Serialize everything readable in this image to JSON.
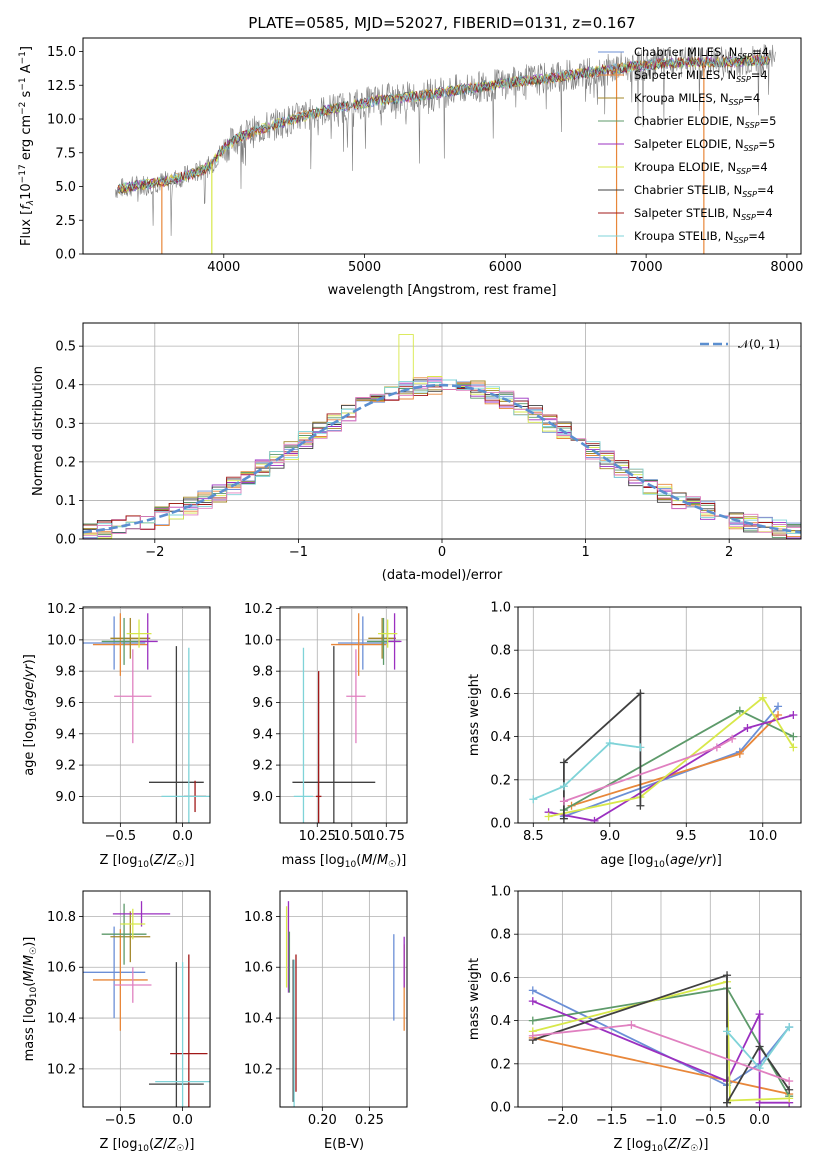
{
  "colors": {
    "axes": "#000000",
    "grid": "#b0b0b0",
    "background": "#ffffff",
    "data": "#7f7f7f"
  },
  "chart_data": [
    {
      "type": "line",
      "title": "PLATE=0585, MJD=52027, FIBERID=0131, z=0.167",
      "xlabel": "wavelength [Angstrom, rest frame]",
      "ylabel_parts": [
        "Flux [",
        "f",
        "λ",
        "10",
        "−17",
        " erg cm",
        "−2",
        " s",
        "−1",
        " A",
        "−1",
        "]"
      ],
      "xlim": [
        3000,
        8100
      ],
      "ylim": [
        0,
        16
      ],
      "xticks": [
        "4000",
        "5000",
        "6000",
        "7000",
        "8000"
      ],
      "yticks": [
        "0.0",
        "2.5",
        "5.0",
        "7.5",
        "10.0",
        "12.5",
        "15.0"
      ],
      "grid": false,
      "legend_position": "right",
      "data_series": {
        "name": "",
        "color": "#7f7f7f",
        "wavelength_range": [
          3230,
          7920
        ]
      },
      "continuum": {
        "x": [
          3230,
          3400,
          3600,
          3800,
          3900,
          4000,
          4100,
          4300,
          4500,
          4700,
          4900,
          5100,
          5300,
          5500,
          5700,
          5900,
          6100,
          6300,
          6500,
          6700,
          6900,
          7100,
          7300,
          7500,
          7700,
          7900
        ],
        "y": [
          4.8,
          5.1,
          5.4,
          6.0,
          6.5,
          7.8,
          8.6,
          9.4,
          10.0,
          10.6,
          11.0,
          11.4,
          11.6,
          11.9,
          12.2,
          12.5,
          12.8,
          13.0,
          13.3,
          13.6,
          13.9,
          14.1,
          14.2,
          14.2,
          14.3,
          14.4
        ]
      },
      "series": [
        {
          "label_pre": "Chabrier MILES, N",
          "label_sub": "SSP",
          "label_post": "=4",
          "color": "#6b8fd6"
        },
        {
          "label_pre": "Salpeter MILES, N",
          "label_sub": "SSP",
          "label_post": "=4",
          "color": "#e8873a"
        },
        {
          "label_pre": "Kroupa MILES, N",
          "label_sub": "SSP",
          "label_post": "=4",
          "color": "#a3872a"
        },
        {
          "label_pre": "Chabrier ELODIE, N",
          "label_sub": "SSP",
          "label_post": "=5",
          "color": "#5d9a6a"
        },
        {
          "label_pre": "Salpeter ELODIE, N",
          "label_sub": "SSP",
          "label_post": "=5",
          "color": "#9b30c0"
        },
        {
          "label_pre": "Kroupa ELODIE, N",
          "label_sub": "SSP",
          "label_post": "=4",
          "color": "#d8e84a"
        },
        {
          "label_pre": "Chabrier STELIB, N",
          "label_sub": "SSP",
          "label_post": "=4",
          "color": "#404040"
        },
        {
          "label_pre": "Salpeter STELIB, N",
          "label_sub": "SSP",
          "label_post": "=4",
          "color": "#a01818"
        },
        {
          "label_pre": "Kroupa STELIB, N",
          "label_sub": "SSP",
          "label_post": "=4",
          "color": "#7fd3d8"
        }
      ]
    },
    {
      "type": "histogram",
      "xlabel": "(data-model)/error",
      "ylabel": "Normed distribution",
      "xlim": [
        -2.5,
        2.5
      ],
      "ylim": [
        0,
        0.56
      ],
      "xticks": [
        "−2",
        "−1",
        "0",
        "1",
        "2"
      ],
      "yticks": [
        "0.0",
        "0.1",
        "0.2",
        "0.3",
        "0.4",
        "0.5"
      ],
      "grid": true,
      "legend_position": "top-right",
      "legend": "𝒩(0, 1)",
      "gaussian_color": "#5b8fd0",
      "bin_width": 0.1,
      "bin_start": -2.5,
      "series_colors": [
        "#6b8fd6",
        "#e8873a",
        "#a3872a",
        "#5d9a6a",
        "#9b30c0",
        "#d8e84a",
        "#404040",
        "#a01818",
        "#7fd3d8",
        "#e080c0"
      ],
      "peak_overrides": [
        {
          "bin": 22,
          "series": 5,
          "value": 0.53
        }
      ]
    },
    {
      "type": "scatter",
      "xlabel": "Z [log₁₀(Z/Z☉)]",
      "ylabel": "age  [log₁₀(age/yr)]",
      "xlim": [
        -0.8,
        0.22
      ],
      "ylim": [
        8.83,
        10.21
      ],
      "xticks": [
        {
          "v": -0.5,
          "t": "−0.5"
        },
        {
          "v": 0.0,
          "t": "0.0"
        }
      ],
      "yticks": [
        "9.0",
        "9.2",
        "9.4",
        "9.6",
        "9.8",
        "10.0",
        "10.2"
      ],
      "grid": true,
      "points": [
        {
          "x": -0.55,
          "y": 9.98,
          "xerr": 0.25,
          "yerr": 0.17,
          "color": "#6b8fd6"
        },
        {
          "x": -0.5,
          "y": 9.97,
          "xerr": 0.22,
          "yerr": 0.2,
          "color": "#e8873a"
        },
        {
          "x": -0.42,
          "y": 10.01,
          "xerr": 0.16,
          "yerr": 0.13,
          "color": "#a3872a"
        },
        {
          "x": -0.47,
          "y": 9.99,
          "xerr": 0.18,
          "yerr": 0.15,
          "color": "#5d9a6a"
        },
        {
          "x": -0.28,
          "y": 9.99,
          "xerr": 0.08,
          "yerr": 0.18,
          "color": "#9b30c0"
        },
        {
          "x": -0.35,
          "y": 10.04,
          "xerr": 0.1,
          "yerr": 0.09,
          "color": "#d8e84a"
        },
        {
          "x": -0.05,
          "y": 9.09,
          "xerr": 0.22,
          "yerr": 0.87,
          "color": "#404040"
        },
        {
          "x": 0.1,
          "y": 9.0,
          "xerr": 0.09,
          "yerr": 0.1,
          "color": "#a01818"
        },
        {
          "x": 0.05,
          "y": 9.0,
          "xerr": 0.22,
          "yerr": 0.95,
          "color": "#7fd3d8"
        },
        {
          "x": -0.4,
          "y": 9.64,
          "xerr": 0.15,
          "yerr": 0.3,
          "color": "#e080c0"
        }
      ]
    },
    {
      "type": "scatter",
      "xlabel": "mass [log₁₀(M/M☉)]",
      "ylabel": "",
      "xlim": [
        9.98,
        10.9
      ],
      "ylim": [
        8.83,
        10.21
      ],
      "xticks": [
        {
          "v": 10.25,
          "t": "10.25"
        },
        {
          "v": 10.5,
          "t": "10.50"
        },
        {
          "v": 10.75,
          "t": "10.75"
        }
      ],
      "yticks": [
        "9.0",
        "9.2",
        "9.4",
        "9.6",
        "9.8",
        "10.0",
        "10.2"
      ],
      "grid": true,
      "points": [
        {
          "x": 10.58,
          "y": 9.98,
          "xerr": 0.18,
          "yerr": 0.17,
          "color": "#6b8fd6"
        },
        {
          "x": 10.55,
          "y": 9.97,
          "xerr": 0.2,
          "yerr": 0.2,
          "color": "#e8873a"
        },
        {
          "x": 10.72,
          "y": 10.01,
          "xerr": 0.1,
          "yerr": 0.13,
          "color": "#a3872a"
        },
        {
          "x": 10.73,
          "y": 9.99,
          "xerr": 0.12,
          "yerr": 0.15,
          "color": "#5d9a6a"
        },
        {
          "x": 10.81,
          "y": 9.99,
          "xerr": 0.05,
          "yerr": 0.18,
          "color": "#9b30c0"
        },
        {
          "x": 10.76,
          "y": 10.04,
          "xerr": 0.07,
          "yerr": 0.09,
          "color": "#d8e84a"
        },
        {
          "x": 10.37,
          "y": 9.09,
          "xerr": 0.3,
          "yerr": 0.87,
          "color": "#404040"
        },
        {
          "x": 10.26,
          "y": 9.0,
          "xerr": 0.02,
          "yerr": 0.8,
          "color": "#a01818"
        },
        {
          "x": 10.15,
          "y": 9.0,
          "xerr": 0.07,
          "yerr": 0.95,
          "color": "#7fd3d8"
        },
        {
          "x": 10.53,
          "y": 9.64,
          "xerr": 0.07,
          "yerr": 0.3,
          "color": "#e080c0"
        }
      ]
    },
    {
      "type": "line",
      "xlabel": "age  [log₁₀(age/yr)]",
      "ylabel": "mass weight",
      "xlim": [
        8.4,
        10.25
      ],
      "ylim": [
        0,
        1
      ],
      "xticks": [
        {
          "v": 8.5,
          "t": "8.5"
        },
        {
          "v": 9.0,
          "t": "9.0"
        },
        {
          "v": 9.5,
          "t": "9.5"
        },
        {
          "v": 10.0,
          "t": "10.0"
        }
      ],
      "yticks": [
        "0.0",
        "0.2",
        "0.4",
        "0.6",
        "0.8",
        "1.0"
      ],
      "grid": true,
      "series": [
        {
          "color": "#6b8fd6",
          "x": [
            8.7,
            9.85,
            10.1
          ],
          "y": [
            0.03,
            0.33,
            0.54
          ]
        },
        {
          "color": "#e8873a",
          "x": [
            8.75,
            9.85,
            10.1
          ],
          "y": [
            0.08,
            0.32,
            0.5
          ]
        },
        {
          "color": "#5d9a6a",
          "x": [
            8.7,
            9.85,
            10.2
          ],
          "y": [
            0.06,
            0.52,
            0.4
          ]
        },
        {
          "color": "#9b30c0",
          "x": [
            8.6,
            8.9,
            9.9,
            10.2
          ],
          "y": [
            0.05,
            0.01,
            0.44,
            0.5
          ]
        },
        {
          "color": "#d8e84a",
          "x": [
            8.6,
            9.2,
            10.0,
            10.2
          ],
          "y": [
            0.03,
            0.12,
            0.58,
            0.35
          ]
        },
        {
          "color": "#404040",
          "x": [
            8.7,
            8.7,
            9.2,
            9.2
          ],
          "y": [
            0.02,
            0.28,
            0.6,
            0.08
          ]
        },
        {
          "color": "#7fd3d8",
          "x": [
            8.5,
            8.7,
            9.0,
            9.2
          ],
          "y": [
            0.11,
            0.17,
            0.37,
            0.35
          ]
        },
        {
          "color": "#e080c0",
          "x": [
            8.7,
            9.7,
            9.8
          ],
          "y": [
            0.1,
            0.35,
            0.39
          ]
        }
      ]
    },
    {
      "type": "scatter",
      "xlabel": "Z [log₁₀(Z/Z☉)]",
      "ylabel": "mass [log₁₀(M/M☉)]",
      "xlim": [
        -0.8,
        0.22
      ],
      "ylim": [
        10.05,
        10.9
      ],
      "xticks": [
        {
          "v": -0.5,
          "t": "−0.5"
        },
        {
          "v": 0.0,
          "t": "0.0"
        }
      ],
      "yticks": [
        "10.2",
        "10.4",
        "10.6",
        "10.8"
      ],
      "grid": true,
      "points": [
        {
          "x": -0.55,
          "y": 10.58,
          "xerr": 0.25,
          "yerr": 0.18,
          "color": "#6b8fd6"
        },
        {
          "x": -0.5,
          "y": 10.55,
          "xerr": 0.22,
          "yerr": 0.2,
          "color": "#e8873a"
        },
        {
          "x": -0.42,
          "y": 10.72,
          "xerr": 0.16,
          "yerr": 0.1,
          "color": "#a3872a"
        },
        {
          "x": -0.47,
          "y": 10.73,
          "xerr": 0.18,
          "yerr": 0.12,
          "color": "#5d9a6a"
        },
        {
          "x": -0.33,
          "y": 10.81,
          "xerr": 0.23,
          "yerr": 0.05,
          "color": "#9b30c0"
        },
        {
          "x": -0.4,
          "y": 10.77,
          "xerr": 0.1,
          "yerr": 0.06,
          "color": "#d8e84a"
        },
        {
          "x": -0.05,
          "y": 10.14,
          "xerr": 0.22,
          "yerr": 0.48,
          "color": "#404040"
        },
        {
          "x": 0.05,
          "y": 10.26,
          "xerr": 0.15,
          "yerr": 0.39,
          "color": "#a01818"
        },
        {
          "x": 0.0,
          "y": 10.15,
          "xerr": 0.22,
          "yerr": 0.47,
          "color": "#7fd3d8"
        },
        {
          "x": -0.4,
          "y": 10.53,
          "xerr": 0.15,
          "yerr": 0.07,
          "color": "#e080c0"
        }
      ]
    },
    {
      "type": "scatter",
      "xlabel": "E(B-V)",
      "ylabel": "",
      "xlim": [
        0.155,
        0.29
      ],
      "ylim": [
        10.05,
        10.9
      ],
      "xticks": [
        {
          "v": 0.2,
          "t": "0.20"
        },
        {
          "v": 0.25,
          "t": "0.25"
        }
      ],
      "yticks": [
        "10.2",
        "10.4",
        "10.6",
        "10.8"
      ],
      "grid": true,
      "points": [
        {
          "x": 0.276,
          "y": 10.56,
          "xerr": 0,
          "yerr": 0.17,
          "color": "#6b8fd6"
        },
        {
          "x": 0.287,
          "y": 10.52,
          "xerr": 0,
          "yerr": 0.17,
          "color": "#e8873a"
        },
        {
          "x": 0.287,
          "y": 10.62,
          "xerr": 0,
          "yerr": 0.1,
          "color": "#9b30c0"
        },
        {
          "x": 0.162,
          "y": 10.68,
          "xerr": 0,
          "yerr": 0.16,
          "color": "#d8e84a"
        },
        {
          "x": 0.164,
          "y": 10.68,
          "xerr": 0,
          "yerr": 0.18,
          "color": "#9b30c0"
        },
        {
          "x": 0.165,
          "y": 10.62,
          "xerr": 0,
          "yerr": 0.12,
          "color": "#5d9a6a"
        },
        {
          "x": 0.169,
          "y": 10.35,
          "xerr": 0,
          "yerr": 0.28,
          "color": "#404040"
        },
        {
          "x": 0.172,
          "y": 10.38,
          "xerr": 0,
          "yerr": 0.27,
          "color": "#a01818"
        },
        {
          "x": 0.17,
          "y": 10.34,
          "xerr": 0,
          "yerr": 0.29,
          "color": "#7fd3d8"
        }
      ]
    },
    {
      "type": "line",
      "xlabel": "Z [log₁₀(Z/Z☉)]",
      "ylabel": "mass weight",
      "xlim": [
        -2.45,
        0.42
      ],
      "ylim": [
        0,
        1
      ],
      "xticks": [
        {
          "v": -2.0,
          "t": "−2.0"
        },
        {
          "v": -1.5,
          "t": "−1.5"
        },
        {
          "v": -1.0,
          "t": "−1.0"
        },
        {
          "v": -0.5,
          "t": "−0.5"
        },
        {
          "v": 0.0,
          "t": "0.0"
        }
      ],
      "yticks": [
        "0.0",
        "0.2",
        "0.4",
        "0.6",
        "0.8",
        "1.0"
      ],
      "grid": true,
      "series": [
        {
          "color": "#6b8fd6",
          "x": [
            -2.3,
            -0.33,
            0.0,
            0.3
          ],
          "y": [
            0.54,
            0.1,
            0.2,
            0.37
          ]
        },
        {
          "color": "#e8873a",
          "x": [
            -2.3,
            0.3
          ],
          "y": [
            0.32,
            0.06
          ]
        },
        {
          "color": "#5d9a6a",
          "x": [
            -2.3,
            -0.33,
            0.3
          ],
          "y": [
            0.4,
            0.55,
            0.05
          ]
        },
        {
          "color": "#9b30c0",
          "x": [
            -2.3,
            -0.33,
            0.0,
            0.0,
            0.3
          ],
          "y": [
            0.49,
            0.12,
            0.43,
            0.02,
            0.02
          ]
        },
        {
          "color": "#d8e84a",
          "x": [
            -2.3,
            -0.33,
            -0.3,
            0.3
          ],
          "y": [
            0.35,
            0.58,
            0.03,
            0.04
          ]
        },
        {
          "color": "#404040",
          "x": [
            -2.3,
            -0.33,
            -0.33,
            0.0,
            0.3
          ],
          "y": [
            0.31,
            0.61,
            0.02,
            0.28,
            0.08
          ]
        },
        {
          "color": "#7fd3d8",
          "x": [
            -0.33,
            0.0,
            0.3
          ],
          "y": [
            0.35,
            0.18,
            0.37
          ]
        },
        {
          "color": "#e080c0",
          "x": [
            -2.3,
            -1.3,
            0.3
          ],
          "y": [
            0.33,
            0.38,
            0.12
          ]
        }
      ]
    }
  ]
}
